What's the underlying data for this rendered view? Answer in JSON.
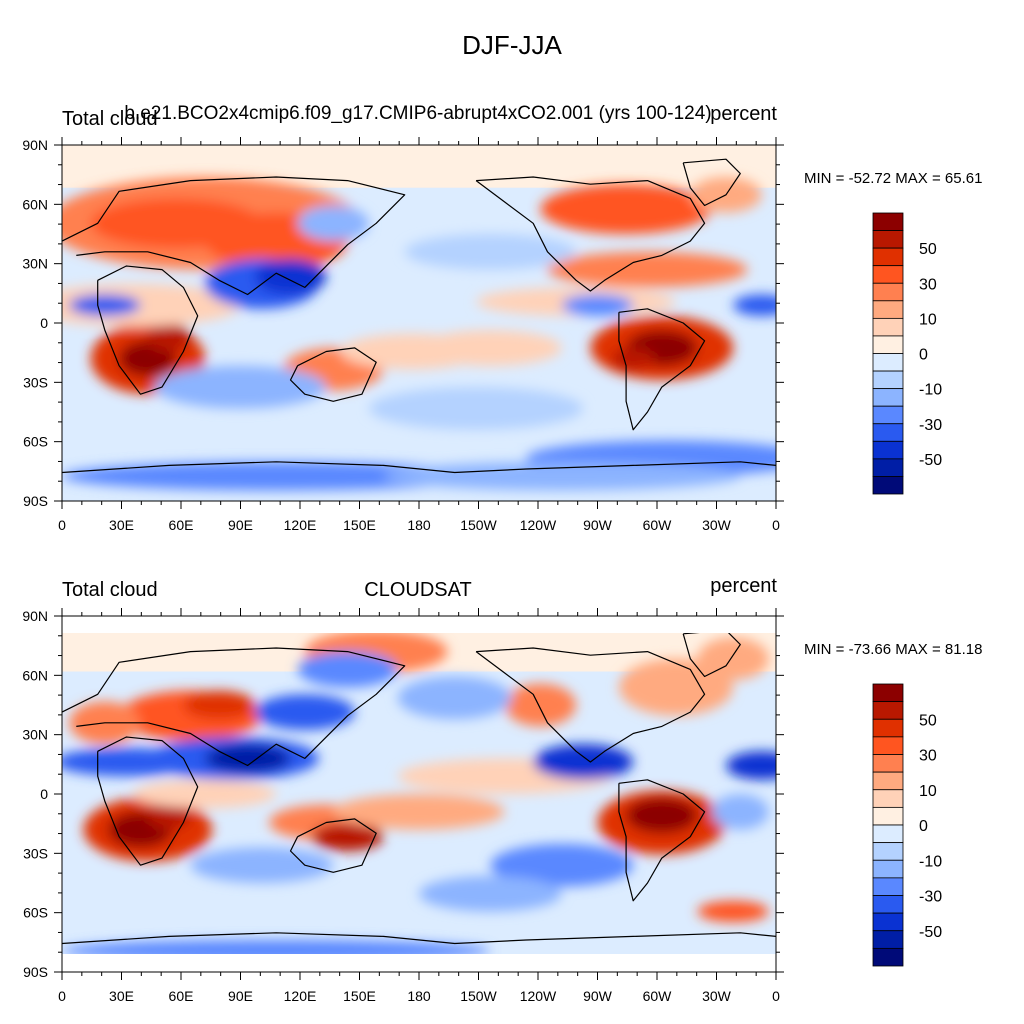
{
  "title": "DJF-JJA",
  "colorbar_levels": [
    "50",
    "30",
    "10",
    "0",
    "-10",
    "-30",
    "-50"
  ],
  "chart_data": [
    {
      "type": "heatmap",
      "left_label": "Total cloud",
      "center_label": "b.e21.BCO2x4cmip6.f09_g17.CMIP6-abrupt4xCO2.001 (yrs 100-124)",
      "right_label": "percent",
      "x_ticks": [
        "0",
        "30E",
        "60E",
        "90E",
        "120E",
        "150E",
        "180",
        "150W",
        "120W",
        "90W",
        "60W",
        "30W",
        "0"
      ],
      "y_ticks": [
        "90N",
        "60N",
        "30N",
        "0",
        "30S",
        "60S",
        "90S"
      ],
      "xlim": [
        0,
        360
      ],
      "ylim": [
        -90,
        90
      ],
      "stats": {
        "min": "-52.72",
        "max": "65.61"
      },
      "stats_text": "MIN = -52.72 MAX =  65.61",
      "colorbar": {
        "colors": [
          "#8c0000",
          "#b81800",
          "#e03000",
          "#ff5520",
          "#ff8050",
          "#ffaa80",
          "#ffd2b8",
          "#fff0e2",
          "#dcecff",
          "#b4d2ff",
          "#8cb4ff",
          "#5a88ff",
          "#2a5af0",
          "#0a32d2",
          "#001ea6",
          "#000a78"
        ],
        "labels": [
          "50",
          "30",
          "10",
          "0",
          "-10",
          "-30",
          "-50"
        ]
      }
    },
    {
      "type": "heatmap",
      "left_label": "Total cloud",
      "center_label": "CLOUDSAT",
      "right_label": "percent",
      "x_ticks": [
        "0",
        "30E",
        "60E",
        "90E",
        "120E",
        "150E",
        "180",
        "150W",
        "120W",
        "90W",
        "60W",
        "30W",
        "0"
      ],
      "y_ticks": [
        "90N",
        "60N",
        "30N",
        "0",
        "30S",
        "60S",
        "90S"
      ],
      "xlim": [
        0,
        360
      ],
      "ylim": [
        -90,
        90
      ],
      "stats": {
        "min": "-73.66",
        "max": "81.18"
      },
      "stats_text": "MIN = -73.66 MAX =  81.18",
      "colorbar": {
        "colors": [
          "#8c0000",
          "#b81800",
          "#e03000",
          "#ff5520",
          "#ff8050",
          "#ffaa80",
          "#ffd2b8",
          "#fff0e2",
          "#dcecff",
          "#b4d2ff",
          "#8cb4ff",
          "#5a88ff",
          "#2a5af0",
          "#0a32d2",
          "#001ea6",
          "#000a78"
        ],
        "labels": [
          "50",
          "30",
          "10",
          "0",
          "-10",
          "-30",
          "-50"
        ]
      }
    }
  ]
}
